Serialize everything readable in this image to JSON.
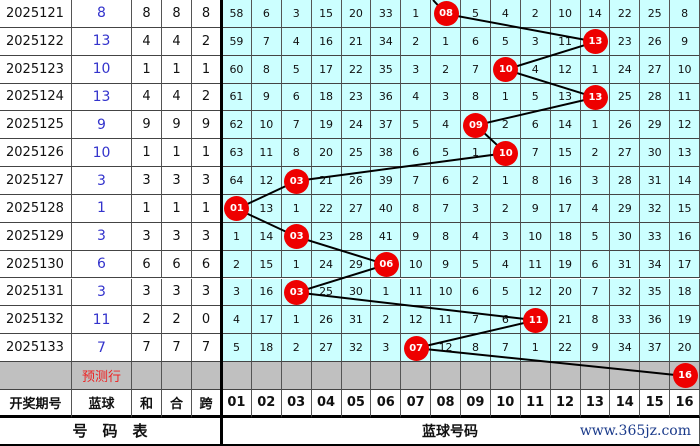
{
  "colors": {
    "missing_bg": "#ccffff",
    "ball": "#ee0000",
    "blue_text": "#3333cc",
    "prediction_bg": "#c0c0c0"
  },
  "rows": [
    {
      "period": "2025121",
      "blue": "8",
      "he": "8",
      "mod": "8",
      "span": "8",
      "hit": 8,
      "cells": [
        "58",
        "6",
        "3",
        "15",
        "20",
        "33",
        "1",
        "08",
        "5",
        "4",
        "2",
        "10",
        "14",
        "22",
        "25",
        "8"
      ]
    },
    {
      "period": "2025122",
      "blue": "13",
      "he": "4",
      "mod": "4",
      "span": "2",
      "hit": 13,
      "cells": [
        "59",
        "7",
        "4",
        "16",
        "21",
        "34",
        "2",
        "1",
        "6",
        "5",
        "3",
        "11",
        "13",
        "23",
        "26",
        "9"
      ]
    },
    {
      "period": "2025123",
      "blue": "10",
      "he": "1",
      "mod": "1",
      "span": "1",
      "hit": 10,
      "cells": [
        "60",
        "8",
        "5",
        "17",
        "22",
        "35",
        "3",
        "2",
        "7",
        "10",
        "4",
        "12",
        "1",
        "24",
        "27",
        "10"
      ]
    },
    {
      "period": "2025124",
      "blue": "13",
      "he": "4",
      "mod": "4",
      "span": "2",
      "hit": 13,
      "cells": [
        "61",
        "9",
        "6",
        "18",
        "23",
        "36",
        "4",
        "3",
        "8",
        "1",
        "5",
        "13",
        "13",
        "25",
        "28",
        "11"
      ]
    },
    {
      "period": "2025125",
      "blue": "9",
      "he": "9",
      "mod": "9",
      "span": "9",
      "hit": 9,
      "cells": [
        "62",
        "10",
        "7",
        "19",
        "24",
        "37",
        "5",
        "4",
        "09",
        "2",
        "6",
        "14",
        "1",
        "26",
        "29",
        "12"
      ]
    },
    {
      "period": "2025126",
      "blue": "10",
      "he": "1",
      "mod": "1",
      "span": "1",
      "hit": 10,
      "cells": [
        "63",
        "11",
        "8",
        "20",
        "25",
        "38",
        "6",
        "5",
        "1",
        "10",
        "7",
        "15",
        "2",
        "27",
        "30",
        "13"
      ]
    },
    {
      "period": "2025127",
      "blue": "3",
      "he": "3",
      "mod": "3",
      "span": "3",
      "hit": 3,
      "cells": [
        "64",
        "12",
        "03",
        "21",
        "26",
        "39",
        "7",
        "6",
        "2",
        "1",
        "8",
        "16",
        "3",
        "28",
        "31",
        "14"
      ]
    },
    {
      "period": "2025128",
      "blue": "1",
      "he": "1",
      "mod": "1",
      "span": "1",
      "hit": 1,
      "cells": [
        "01",
        "13",
        "1",
        "22",
        "27",
        "40",
        "8",
        "7",
        "3",
        "2",
        "9",
        "17",
        "4",
        "29",
        "32",
        "15"
      ]
    },
    {
      "period": "2025129",
      "blue": "3",
      "he": "3",
      "mod": "3",
      "span": "3",
      "hit": 3,
      "cells": [
        "1",
        "14",
        "03",
        "23",
        "28",
        "41",
        "9",
        "8",
        "4",
        "3",
        "10",
        "18",
        "5",
        "30",
        "33",
        "16"
      ]
    },
    {
      "period": "2025130",
      "blue": "6",
      "he": "6",
      "mod": "6",
      "span": "6",
      "hit": 6,
      "cells": [
        "2",
        "15",
        "1",
        "24",
        "29",
        "06",
        "10",
        "9",
        "5",
        "4",
        "11",
        "19",
        "6",
        "31",
        "34",
        "17"
      ]
    },
    {
      "period": "2025131",
      "blue": "3",
      "he": "3",
      "mod": "3",
      "span": "3",
      "hit": 3,
      "cells": [
        "3",
        "16",
        "03",
        "25",
        "30",
        "1",
        "11",
        "10",
        "6",
        "5",
        "12",
        "20",
        "7",
        "32",
        "35",
        "18"
      ]
    },
    {
      "period": "2025132",
      "blue": "11",
      "he": "2",
      "mod": "2",
      "span": "0",
      "hit": 11,
      "cells": [
        "4",
        "17",
        "1",
        "26",
        "31",
        "2",
        "12",
        "11",
        "7",
        "6",
        "11",
        "21",
        "8",
        "33",
        "36",
        "19"
      ]
    },
    {
      "period": "2025133",
      "blue": "7",
      "he": "7",
      "mod": "7",
      "span": "7",
      "hit": 7,
      "cells": [
        "5",
        "18",
        "2",
        "27",
        "32",
        "3",
        "07",
        "12",
        "8",
        "7",
        "1",
        "22",
        "9",
        "34",
        "37",
        "20"
      ]
    }
  ],
  "prediction": {
    "label": "预测行",
    "hit": 16,
    "ball": "16"
  },
  "header": {
    "period": "开奖期号",
    "blue": "蓝球",
    "he": "和",
    "mod": "合",
    "span": "跨",
    "numbers": [
      "01",
      "02",
      "03",
      "04",
      "05",
      "06",
      "07",
      "08",
      "09",
      "10",
      "11",
      "12",
      "13",
      "14",
      "15",
      "16"
    ]
  },
  "footer": {
    "left": "号　码　表",
    "right": "蓝球号码",
    "site": "www.365jz.com"
  }
}
